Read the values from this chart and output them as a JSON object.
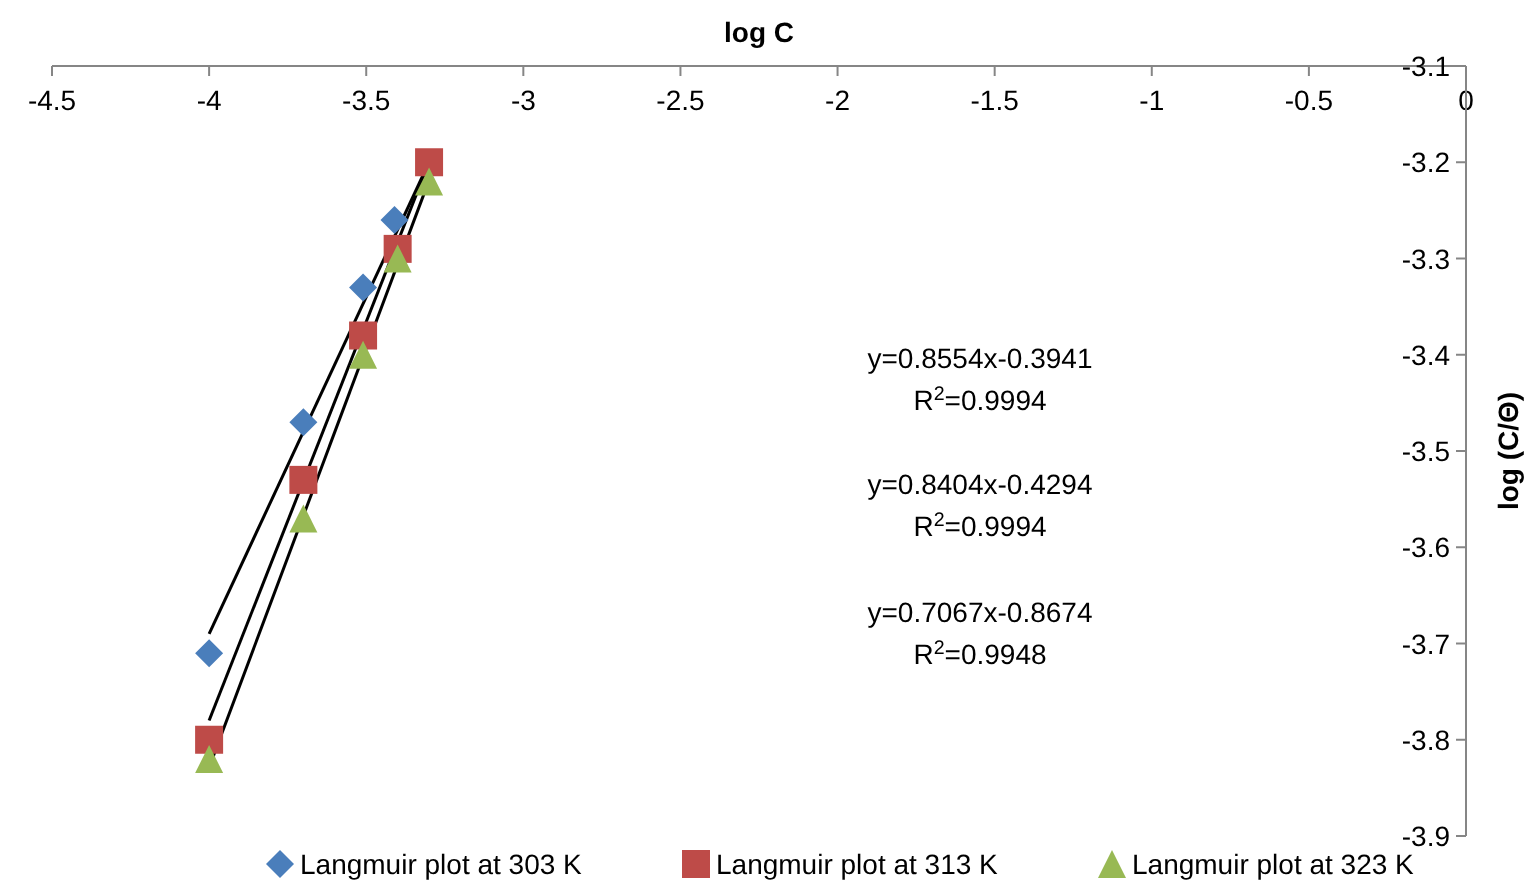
{
  "chart_data": {
    "type": "scatter",
    "xlabel": "log C",
    "ylabel": "log (C/Θ)",
    "xlim": [
      -4.5,
      0
    ],
    "xticks": [
      -4.5,
      -4,
      -3.5,
      -3,
      -2.5,
      -2,
      -1.5,
      -1,
      -0.5,
      0
    ],
    "ylim": [
      -3.9,
      -3.1
    ],
    "yticks": [
      -3.9,
      -3.8,
      -3.7,
      -3.6,
      -3.5,
      -3.4,
      -3.3,
      -3.2,
      -3.1
    ],
    "grid": false,
    "legend": "bottom",
    "series": [
      {
        "name": "Langmuir plot at 303 K",
        "color": "#4a7ebb",
        "marker": "diamond",
        "x": [
          -4.0,
          -3.7,
          -3.51,
          -3.41
        ],
        "values": [
          -3.71,
          -3.47,
          -3.33,
          -3.26
        ]
      },
      {
        "name": "Langmuir plot at 313 K",
        "color": "#be4b48",
        "marker": "square",
        "x": [
          -4.0,
          -3.7,
          -3.51,
          -3.4,
          -3.3
        ],
        "values": [
          -3.8,
          -3.53,
          -3.38,
          -3.29,
          -3.2
        ]
      },
      {
        "name": "Langmuir plot at 323 K",
        "color": "#98b954",
        "marker": "triangle",
        "x": [
          -4.0,
          -3.7,
          -3.51,
          -3.4,
          -3.3
        ],
        "values": [
          -3.82,
          -3.57,
          -3.4,
          -3.3,
          -3.22
        ]
      },
      {
        "type": "line",
        "color": "#000000",
        "x": [
          -4.0,
          -3.3
        ],
        "values": [
          -3.69,
          -3.2
        ]
      },
      {
        "type": "line",
        "color": "#000000",
        "x": [
          -4.0,
          -3.3
        ],
        "values": [
          -3.78,
          -3.2
        ]
      },
      {
        "type": "line",
        "color": "#000000",
        "x": [
          -3.99,
          -3.29
        ],
        "values": [
          -3.82,
          -3.21
        ]
      }
    ],
    "annotations": [
      "y=0.8554x-0.3941",
      "R$^{2}$=0.9994",
      "y=0.8404x-0.4294",
      "R$^{2}$=0.9994",
      "y=0.7067x-0.8674",
      "R$^{2}$=0.9948"
    ]
  }
}
